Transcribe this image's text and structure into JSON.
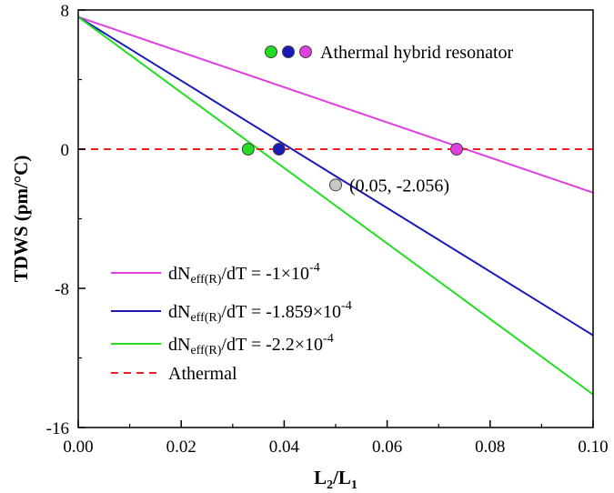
{
  "chart_data": {
    "type": "line",
    "xlabel": "L₂/L₁",
    "ylabel": "TDWS (pm/°C)",
    "xlim": [
      0,
      0.1
    ],
    "ylim": [
      -16,
      8
    ],
    "xticks": [
      "0.00",
      "0.02",
      "0.04",
      "0.06",
      "0.08",
      "0.10"
    ],
    "yticks": [
      "8",
      "0",
      "-8",
      "-16"
    ],
    "series": [
      {
        "name": "dNeff(R)/dT = -1×10⁻⁴",
        "label_base": "dN",
        "label_sub": "eff(R)",
        "label_rest": "/dT = -1×10",
        "label_exp": "-4",
        "color": "#e040e0",
        "x": [
          0,
          0.1
        ],
        "y": [
          7.6,
          -2.5
        ]
      },
      {
        "name": "dNeff(R)/dT = -1.859×10⁻⁴",
        "label_base": "dN",
        "label_sub": "eff(R)",
        "label_rest": "/dT = -1.859×10",
        "label_exp": "-4",
        "color": "#1a1ab8",
        "x": [
          0,
          0.1
        ],
        "y": [
          7.6,
          -10.7
        ]
      },
      {
        "name": "dNeff(R)/dT = -2.2×10⁻⁴",
        "label_base": "dN",
        "label_sub": "eff(R)",
        "label_rest": "/dT = -2.2×10",
        "label_exp": "-4",
        "color": "#22dd22",
        "x": [
          0,
          0.1
        ],
        "y": [
          7.6,
          -14.1
        ]
      },
      {
        "name": "Athermal",
        "label_base": "Athermal",
        "color": "#ee2222",
        "dashed": true,
        "x": [
          0,
          0.1
        ],
        "y": [
          0,
          0
        ]
      }
    ],
    "points": [
      {
        "x": 0.033,
        "y": 0,
        "color": "#22dd22"
      },
      {
        "x": 0.039,
        "y": 0,
        "color": "#1a1ab8"
      },
      {
        "x": 0.0735,
        "y": 0,
        "color": "#e040e0"
      },
      {
        "x": 0.05,
        "y": -2.056,
        "color": "#c8c8c8"
      }
    ],
    "annotations": {
      "legend_title": "Athermal hybrid resonator",
      "legend_dot_colors": [
        "#22dd22",
        "#1a1ab8",
        "#e040e0"
      ],
      "point_label": "(0.05, -2.056)"
    }
  }
}
